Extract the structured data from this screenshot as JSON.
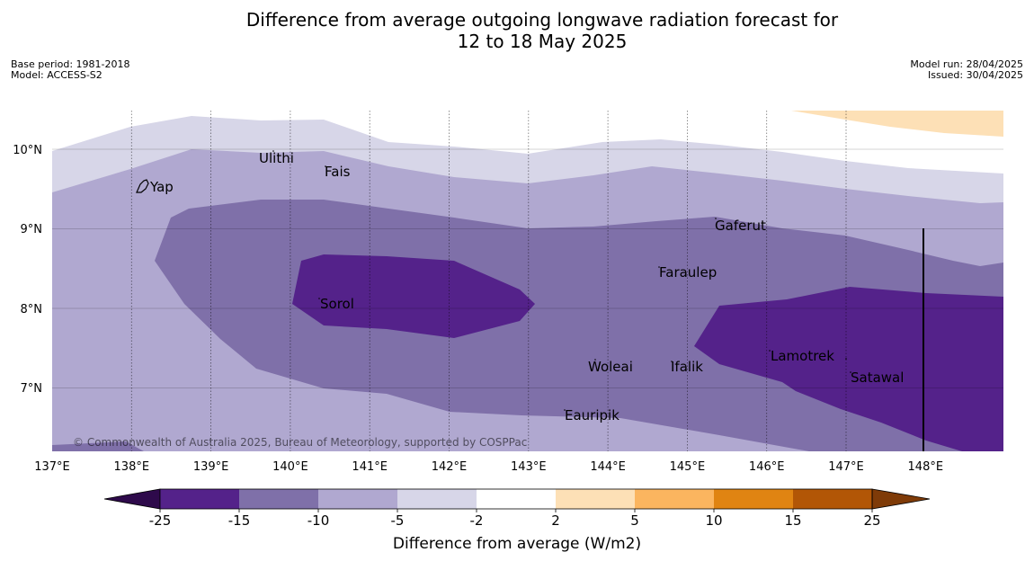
{
  "title": {
    "line1": "Difference from average outgoing longwave radiation forecast for",
    "line2": "12 to 18 May 2025"
  },
  "meta_left": {
    "base_period": "Base period: 1981-2018",
    "model": "Model: ACCESS-S2"
  },
  "meta_right": {
    "model_run": "Model run: 28/04/2025",
    "issued": "Issued: 30/04/2025"
  },
  "map": {
    "lon_labels": [
      "137°E",
      "138°E",
      "139°E",
      "140°E",
      "141°E",
      "142°E",
      "143°E",
      "144°E",
      "145°E",
      "146°E",
      "147°E",
      "148°E"
    ],
    "lat_labels": [
      "10°N",
      "9°N",
      "8°N",
      "7°N"
    ],
    "places": [
      "Yap",
      "Ulithi",
      "Fais",
      "Gaferut",
      "Faraulep",
      "Sorol",
      "Woleai",
      "Ifalik",
      "Lamotrek",
      "Satawal",
      "Eauripik"
    ],
    "copyright": "© Commonwealth of Australia 2025, Bureau of Meteorology, supported by COSPPac"
  },
  "colorbar": {
    "tick_labels": [
      "-25",
      "-15",
      "-10",
      "-5",
      "-2",
      "2",
      "5",
      "10",
      "15",
      "25"
    ],
    "label": "Difference from average (W/m2)",
    "colors": [
      "#2e0a4b",
      "#54228a",
      "#7f70a9",
      "#b0a8d0",
      "#d7d6e8",
      "#ffffff",
      "#fde0b6",
      "#fbb55f",
      "#e08412",
      "#b25606",
      "#7f3b08"
    ]
  }
}
